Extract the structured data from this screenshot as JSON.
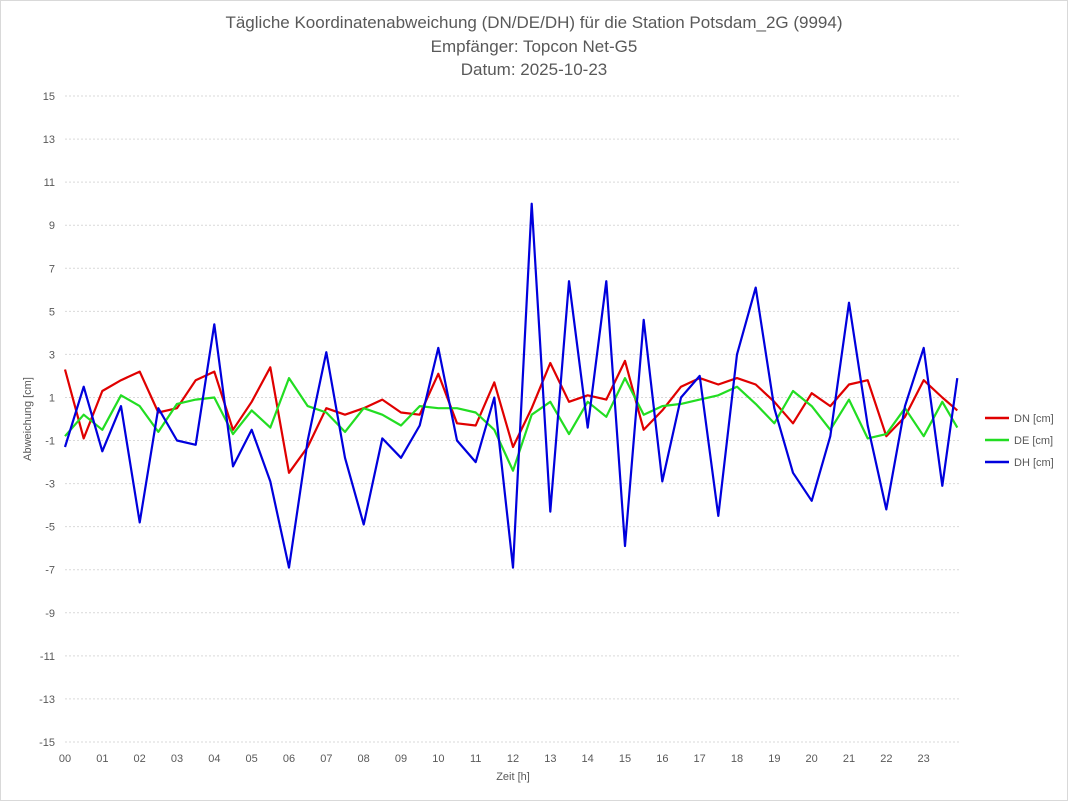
{
  "chart_data": {
    "type": "line",
    "title": "Tägliche Koordinatenabweichung (DN/DE/DH) für die Station Potsdam_2G (9994)",
    "subtitle_lines": [
      "Empfänger: Topcon Net-G5",
      "Datum: 2025-10-23"
    ],
    "xlabel": "Zeit [h]",
    "ylabel": "Abweichung [cm]",
    "xlim": [
      0,
      24
    ],
    "ylim": [
      -15,
      15
    ],
    "grid": true,
    "legend_position": "right",
    "x_tick_labels": [
      "00",
      "01",
      "02",
      "03",
      "04",
      "05",
      "06",
      "07",
      "08",
      "09",
      "10",
      "11",
      "12",
      "13",
      "14",
      "15",
      "16",
      "17",
      "18",
      "19",
      "20",
      "21",
      "22",
      "23"
    ],
    "y_ticks": [
      15,
      13,
      11,
      9,
      7,
      5,
      3,
      1,
      -1,
      -3,
      -5,
      -7,
      -9,
      -11,
      -13,
      -15
    ],
    "x": [
      0.0,
      0.5,
      1.0,
      1.5,
      2.0,
      2.5,
      3.0,
      3.5,
      4.0,
      4.5,
      5.0,
      5.5,
      6.0,
      6.5,
      7.0,
      7.5,
      8.0,
      8.5,
      9.0,
      9.5,
      10.0,
      10.5,
      11.0,
      11.5,
      12.0,
      12.5,
      13.0,
      13.5,
      14.0,
      14.5,
      15.0,
      15.5,
      16.0,
      16.5,
      17.0,
      17.5,
      18.0,
      18.5,
      19.0,
      19.5,
      20.0,
      20.5,
      21.0,
      21.5,
      22.0,
      22.5,
      23.0,
      23.5,
      23.9
    ],
    "series": [
      {
        "name": "DN [cm]",
        "color": "#e00000",
        "values": [
          2.3,
          -0.9,
          1.3,
          1.8,
          2.2,
          0.3,
          0.5,
          1.8,
          2.2,
          -0.5,
          0.8,
          2.4,
          -2.5,
          -1.3,
          0.5,
          0.2,
          0.5,
          0.9,
          0.3,
          0.2,
          2.1,
          -0.2,
          -0.3,
          1.7,
          -1.3,
          0.5,
          2.6,
          0.8,
          1.1,
          0.9,
          2.7,
          -0.5,
          0.4,
          1.5,
          1.9,
          1.6,
          1.9,
          1.6,
          0.8,
          -0.2,
          1.2,
          0.6,
          1.6,
          1.8,
          -0.8,
          0.1,
          1.8,
          1.0,
          0.4
        ]
      },
      {
        "name": "DE [cm]",
        "color": "#22dd22",
        "values": [
          -0.8,
          0.2,
          -0.5,
          1.1,
          0.6,
          -0.6,
          0.7,
          0.9,
          1.0,
          -0.7,
          0.4,
          -0.4,
          1.9,
          0.6,
          0.3,
          -0.6,
          0.5,
          0.2,
          -0.3,
          0.6,
          0.5,
          0.5,
          0.3,
          -0.5,
          -2.4,
          0.2,
          0.8,
          -0.7,
          0.8,
          0.1,
          1.9,
          0.2,
          0.6,
          0.7,
          0.9,
          1.1,
          1.5,
          0.7,
          -0.2,
          1.3,
          0.6,
          -0.5,
          0.9,
          -0.9,
          -0.7,
          0.5,
          -0.8,
          0.8,
          -0.4
        ]
      },
      {
        "name": "DH [cm]",
        "color": "#0000dd",
        "values": [
          -1.3,
          1.5,
          -1.5,
          0.6,
          -4.8,
          0.5,
          -1.0,
          -1.2,
          4.4,
          -2.2,
          -0.5,
          -2.9,
          -6.9,
          -1.0,
          3.1,
          -1.8,
          -4.9,
          -0.9,
          -1.8,
          -0.3,
          3.3,
          -1.0,
          -2.0,
          1.0,
          -6.9,
          10.0,
          -4.3,
          6.4,
          -0.4,
          6.4,
          -5.9,
          4.6,
          -2.9,
          1.0,
          2.0,
          -4.5,
          3.0,
          6.1,
          0.5,
          -2.5,
          -3.8,
          -0.8,
          5.4,
          -0.3,
          -4.2,
          0.6,
          3.3,
          -3.1,
          1.9
        ]
      }
    ]
  }
}
